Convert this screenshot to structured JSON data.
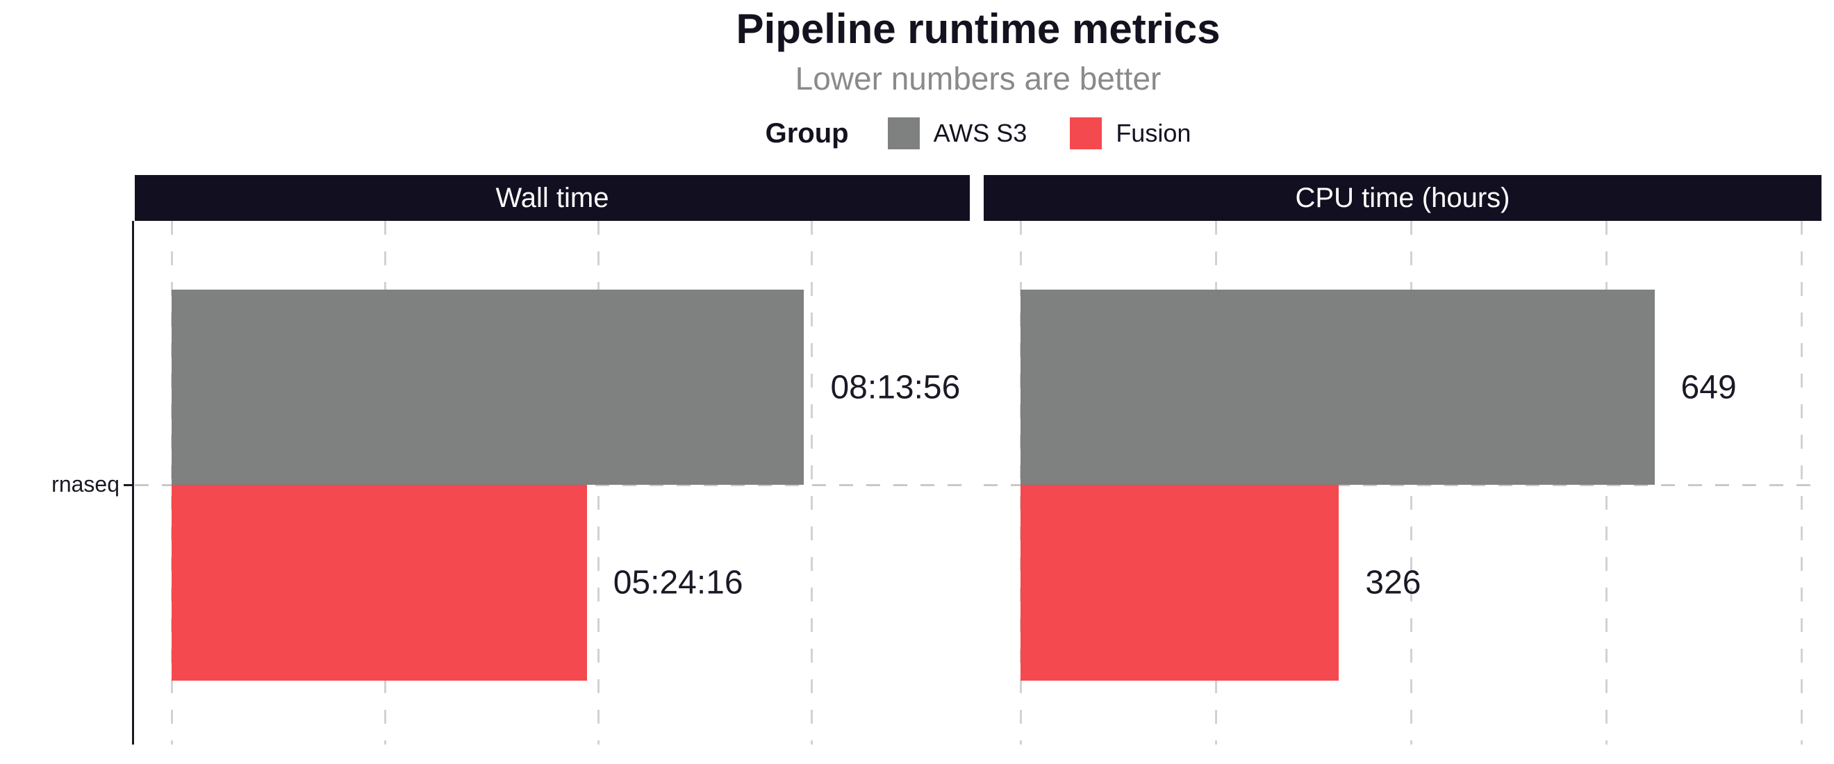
{
  "title": "Pipeline runtime metrics",
  "subtitle": "Lower numbers are better",
  "legend": {
    "title": "Group",
    "items": [
      {
        "label": "AWS S3",
        "color": "#7f8080"
      },
      {
        "label": "Fusion",
        "color": "#f4494e"
      }
    ]
  },
  "y_axis": {
    "category": "rnaseq"
  },
  "colors": {
    "strip_background": "#121020",
    "title_text": "#14121f",
    "subtitle_text": "#8a8a8a",
    "axis_line": "#1b1a23",
    "gridline": "#d2d2d2",
    "value_label_text": "#1a1926",
    "aws_s3_bar": "#7f8080",
    "fusion_bar": "#f4494e"
  },
  "chart_data": [
    {
      "type": "bar",
      "orientation": "horizontal",
      "panel": "Wall time",
      "categories": [
        "rnaseq"
      ],
      "x_unit": "seconds",
      "xlim": [
        0,
        37400
      ],
      "gridlines_x": [
        0,
        10000,
        20000,
        30000
      ],
      "grid": "dashed",
      "legend_position": "top",
      "series": [
        {
          "name": "AWS S3",
          "values": [
            29636
          ],
          "labels": [
            "08:13:56"
          ],
          "color": "#7f8080"
        },
        {
          "name": "Fusion",
          "values": [
            19456
          ],
          "labels": [
            "05:24:16"
          ],
          "color": "#f4494e"
        }
      ]
    },
    {
      "type": "bar",
      "orientation": "horizontal",
      "panel": "CPU time (hours)",
      "categories": [
        "rnaseq"
      ],
      "x_unit": "hours",
      "xlim": [
        0,
        820
      ],
      "gridlines_x": [
        0,
        200,
        400,
        600,
        800
      ],
      "grid": "dashed",
      "legend_position": "top",
      "series": [
        {
          "name": "AWS S3",
          "values": [
            649
          ],
          "labels": [
            "649"
          ],
          "color": "#7f8080"
        },
        {
          "name": "Fusion",
          "values": [
            326
          ],
          "labels": [
            "326"
          ],
          "color": "#f4494e"
        }
      ]
    }
  ]
}
